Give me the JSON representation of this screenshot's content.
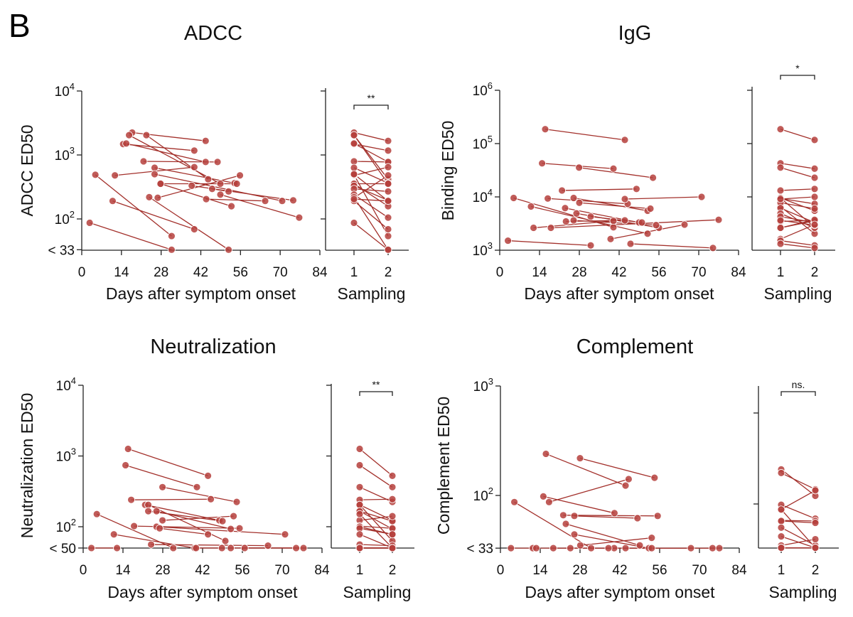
{
  "panel_letter": "B",
  "colors": {
    "marker": "#b5403c",
    "line": "#a3302b"
  },
  "chart_data": [
    {
      "type": "scatter",
      "subtype": "paired-line",
      "title": "ADCC",
      "ylabel": "ADCC ED50",
      "xlabel": "Days after symptom onset",
      "yscale": "log",
      "xlim": [
        0,
        84
      ],
      "ylim": [
        33,
        10000
      ],
      "xticks": [
        "0",
        "14",
        "28",
        "42",
        "56",
        "70",
        "84"
      ],
      "yticks": [
        {
          "base": "10",
          "exp": "4",
          "value": 10000
        },
        {
          "base": "10",
          "exp": "3",
          "value": 1000
        },
        {
          "base": "10",
          "exp": "2",
          "value": 100
        },
        {
          "base": "< 33",
          "exp": "",
          "value": 33
        }
      ],
      "sampling": {
        "xlabel": "Sampling",
        "categories": [
          "1",
          "2"
        ],
        "significance": "**"
      },
      "pairs": [
        [
          17.8,
          2240,
          43.7,
          1660
        ],
        [
          22.8,
          2040,
          44.6,
          417
        ],
        [
          16.7,
          2040,
          48.9,
          355
        ],
        [
          14.6,
          1480,
          39.7,
          1170
        ],
        [
          15.7,
          1510,
          43.7,
          776
        ],
        [
          21.8,
          794,
          47.9,
          776
        ],
        [
          25.7,
          631,
          53.9,
          363
        ],
        [
          11.7,
          479,
          39.7,
          646
        ],
        [
          4.8,
          490,
          31.7,
          54
        ],
        [
          25.7,
          501,
          70.7,
          191
        ],
        [
          27.8,
          355,
          54.7,
          355
        ],
        [
          27.8,
          355,
          52.8,
          158
        ],
        [
          38.8,
          331,
          74.6,
          195
        ],
        [
          46,
          295,
          51.8,
          269
        ],
        [
          48.9,
          240,
          76.7,
          105
        ],
        [
          26.8,
          214,
          55.8,
          479
        ],
        [
          23.8,
          219,
          51.8,
          33
        ],
        [
          10.9,
          191,
          39.7,
          69
        ],
        [
          2.8,
          87,
          31.7,
          33
        ],
        [
          43.9,
          204,
          64.7,
          191
        ]
      ]
    },
    {
      "type": "scatter",
      "subtype": "paired-line",
      "title": "IgG",
      "ylabel": "Binding ED50",
      "xlabel": "Days after symptom onset",
      "yscale": "log",
      "xlim": [
        0,
        84
      ],
      "ylim": [
        1000,
        1000000
      ],
      "xticks": [
        "0",
        "14",
        "28",
        "42",
        "56",
        "70",
        "84"
      ],
      "yticks": [
        {
          "base": "10",
          "exp": "6",
          "value": 1000000
        },
        {
          "base": "10",
          "exp": "5",
          "value": 100000
        },
        {
          "base": "10",
          "exp": "4",
          "value": 10000
        },
        {
          "base": "10",
          "exp": "3",
          "value": 1000
        }
      ],
      "sampling": {
        "xlabel": "Sampling",
        "categories": [
          "1",
          "2"
        ],
        "significance": "*"
      },
      "pairs": [
        [
          16,
          186000,
          44,
          117000
        ],
        [
          14.9,
          42700,
          40,
          33900
        ],
        [
          27.9,
          35500,
          53.9,
          22900
        ],
        [
          21.9,
          13200,
          48.1,
          14100
        ],
        [
          4.9,
          9550,
          40,
          2690
        ],
        [
          11,
          6610,
          52,
          2040
        ],
        [
          16.9,
          9330,
          45,
          7410
        ],
        [
          26,
          9550,
          52,
          5500
        ],
        [
          28,
          7760,
          53,
          6030
        ],
        [
          44,
          9120,
          71,
          10000
        ],
        [
          23,
          6170,
          49,
          3310
        ],
        [
          27,
          4900,
          56,
          2630
        ],
        [
          32,
          4270,
          50,
          3310
        ],
        [
          23.3,
          3470,
          44,
          3630
        ],
        [
          26,
          3630,
          55,
          2950
        ],
        [
          11.9,
          2630,
          40,
          3550
        ],
        [
          18,
          2630,
          77,
          3720
        ],
        [
          39,
          1620,
          65,
          3020
        ],
        [
          2.9,
          1510,
          32,
          1230
        ],
        [
          46,
          1320,
          75,
          1100
        ]
      ]
    },
    {
      "type": "scatter",
      "subtype": "paired-line",
      "title": "Neutralization",
      "ylabel": "Neutralization ED50",
      "xlabel": "Days after symptom onset",
      "yscale": "log",
      "xlim": [
        0,
        84
      ],
      "ylim": [
        50,
        10000
      ],
      "xticks": [
        "0",
        "14",
        "28",
        "42",
        "56",
        "70",
        "84"
      ],
      "yticks": [
        {
          "base": "10",
          "exp": "4",
          "value": 10000
        },
        {
          "base": "10",
          "exp": "3",
          "value": 1000
        },
        {
          "base": "10",
          "exp": "2",
          "value": 100
        },
        {
          "base": "< 50",
          "exp": "",
          "value": 50
        }
      ],
      "sampling": {
        "xlabel": "Sampling",
        "categories": [
          "1",
          "2"
        ],
        "significance": "**"
      },
      "pairs": [
        [
          15.8,
          1260,
          43.9,
          525
        ],
        [
          14.9,
          741,
          40,
          363
        ],
        [
          27.9,
          363,
          54,
          224
        ],
        [
          16.9,
          240,
          44.9,
          245
        ],
        [
          21.8,
          204,
          47.9,
          123
        ],
        [
          22.9,
          204,
          50,
          63
        ],
        [
          22.9,
          166,
          49,
          120
        ],
        [
          25.8,
          166,
          51.9,
          93
        ],
        [
          27.9,
          123,
          52.9,
          141
        ],
        [
          4.8,
          151,
          31.7,
          50
        ],
        [
          17.9,
          102,
          55,
          95
        ],
        [
          25.8,
          100,
          71,
          78
        ],
        [
          26.9,
          95,
          43.9,
          78
        ],
        [
          10.8,
          78,
          39.2,
          50
        ],
        [
          23.9,
          56,
          65,
          54
        ],
        [
          2.9,
          50,
          11.9,
          50
        ],
        [
          39.7,
          50,
          48.8,
          50
        ],
        [
          51.9,
          50,
          74.9,
          50
        ],
        [
          56.8,
          50,
          77.5,
          50
        ]
      ]
    },
    {
      "type": "scatter",
      "subtype": "paired-line",
      "title": "Complement",
      "ylabel": "Complement ED50",
      "xlabel": "Days after symptom onset",
      "yscale": "log",
      "xlim": [
        0,
        84
      ],
      "ylim": [
        33,
        1000
      ],
      "xticks": [
        "0",
        "14",
        "28",
        "42",
        "56",
        "70",
        "84"
      ],
      "yticks": [
        {
          "base": "10",
          "exp": "3",
          "value": 1000
        },
        {
          "base": "10",
          "exp": "2",
          "value": 100
        },
        {
          "base": "< 33",
          "exp": "",
          "value": 33
        }
      ],
      "sampling": {
        "xlabel": "Sampling",
        "categories": [
          "1",
          "2"
        ],
        "significance": "ns."
      },
      "pairs": [
        [
          16,
          240,
          44,
          123
        ],
        [
          28,
          219,
          54.2,
          145
        ],
        [
          17.1,
          87,
          45.1,
          141
        ],
        [
          15.1,
          98,
          40.1,
          69
        ],
        [
          4.9,
          87,
          31.9,
          33
        ],
        [
          22.1,
          66,
          55.3,
          65
        ],
        [
          26,
          65,
          48.2,
          62
        ],
        [
          23,
          55,
          49,
          35
        ],
        [
          26,
          44,
          52.2,
          33
        ],
        [
          28.1,
          35,
          53.2,
          41
        ],
        [
          3.7,
          33,
          11.4,
          33
        ],
        [
          12.6,
          33,
          40,
          33
        ],
        [
          18.6,
          33,
          53.2,
          33
        ],
        [
          24.6,
          33,
          67,
          33
        ],
        [
          38,
          33,
          74.6,
          33
        ],
        [
          44,
          33,
          77,
          33
        ]
      ]
    }
  ]
}
